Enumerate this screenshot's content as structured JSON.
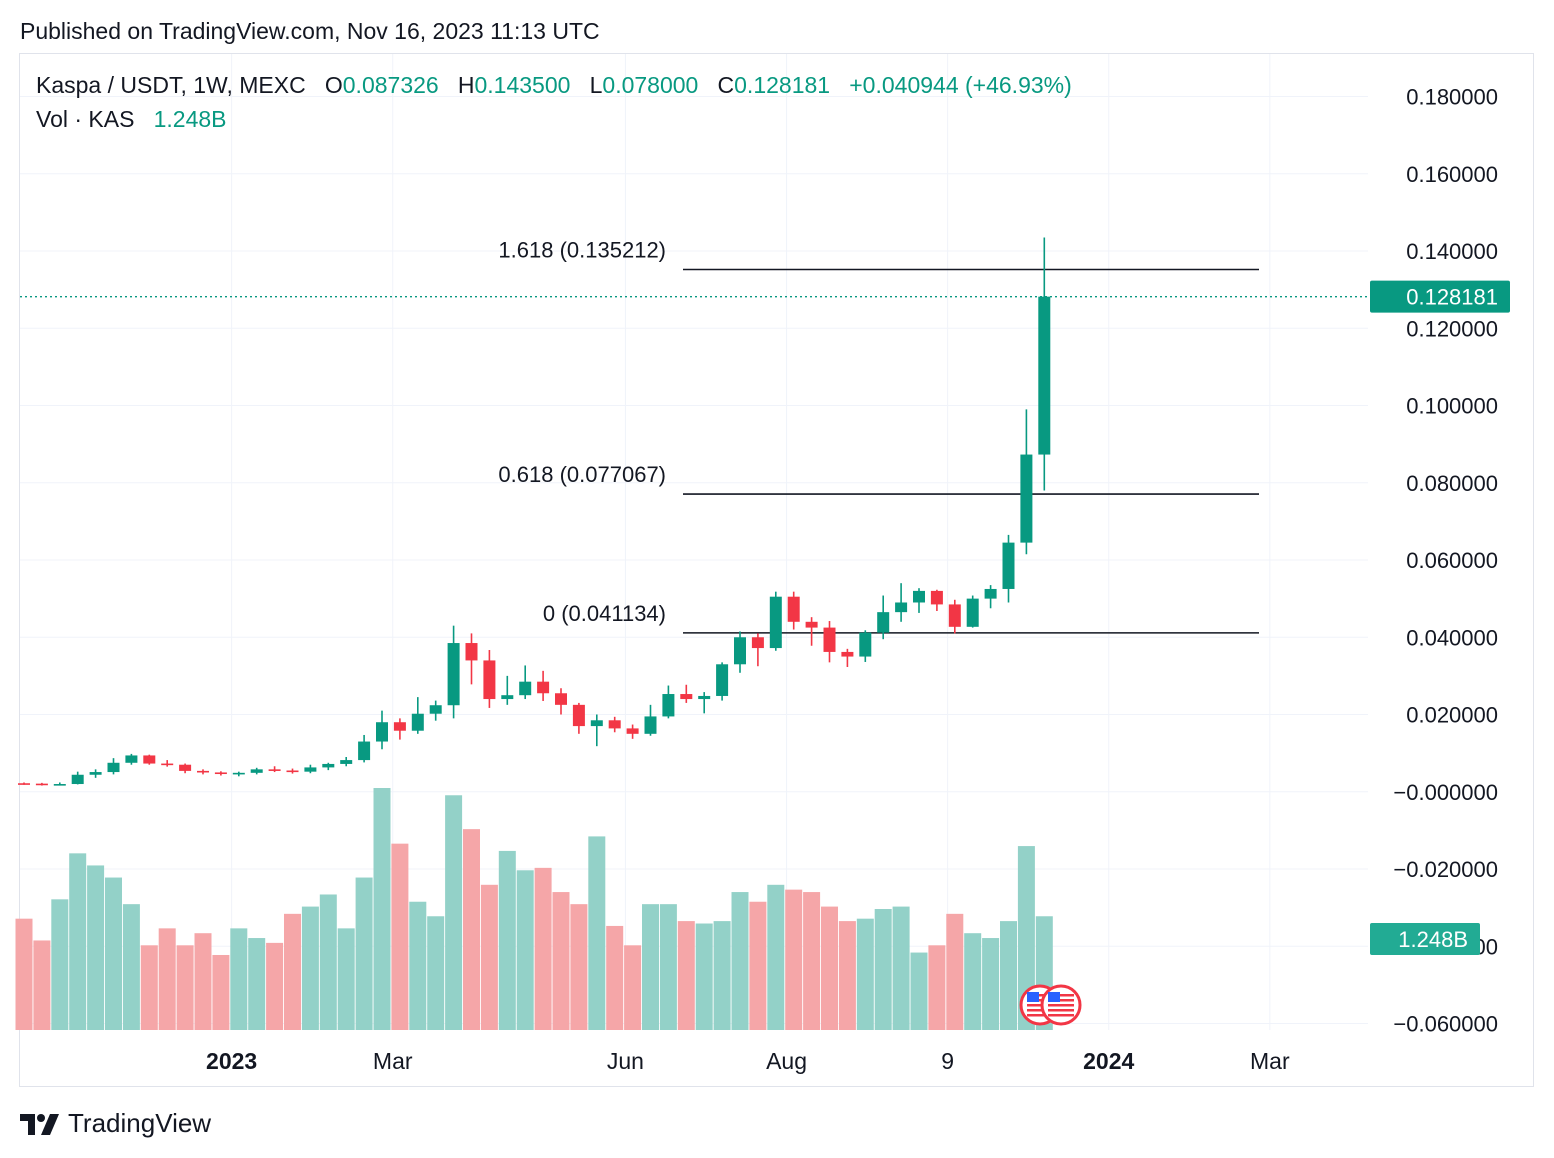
{
  "header": {
    "published": "Published on TradingView.com, Nov 16, 2023 11:13 UTC"
  },
  "legend": {
    "symbol": "Kaspa / USDT, 1W, MEXC",
    "o_key": "O",
    "o_val": "0.087326",
    "h_key": "H",
    "h_val": "0.143500",
    "l_key": "L",
    "l_val": "0.078000",
    "c_key": "C",
    "c_val": "0.128181",
    "change": "+0.040944 (+46.93%)",
    "vol_key": "Vol · KAS",
    "vol_val": "1.248B"
  },
  "brand": {
    "name": "TradingView"
  },
  "colors": {
    "up": "#089981",
    "down": "#f23645",
    "up_vol": "#93d1c8",
    "down_vol": "#f5a6a8",
    "grid": "#f0f3fa",
    "text": "#131722"
  },
  "chart_data": {
    "type": "candlestick",
    "y_axis": {
      "ticks": [
        "0.180000",
        "0.160000",
        "0.140000",
        "0.120000",
        "0.100000",
        "0.080000",
        "0.060000",
        "0.040000",
        "0.020000",
        "−0.000000",
        "−0.020000",
        "−0.040000",
        "−0.060000"
      ],
      "tick_values": [
        0.18,
        0.16,
        0.14,
        0.12,
        0.1,
        0.08,
        0.06,
        0.04,
        0.02,
        0,
        -0.02,
        -0.04,
        -0.06
      ],
      "range": [
        -0.06,
        0.18
      ]
    },
    "x_axis": {
      "labels": [
        {
          "text": "2023",
          "bold": true,
          "week": 11.6
        },
        {
          "text": "Mar",
          "bold": false,
          "week": 20.6
        },
        {
          "text": "Jun",
          "bold": false,
          "week": 33.6
        },
        {
          "text": "Aug",
          "bold": false,
          "week": 42.6
        },
        {
          "text": "9",
          "bold": false,
          "week": 51.6
        },
        {
          "text": "2024",
          "bold": true,
          "week": 60.6
        },
        {
          "text": "Mar",
          "bold": false,
          "week": 69.6
        }
      ]
    },
    "last_price": {
      "value": 0.128181,
      "label": "0.128181"
    },
    "last_volume": {
      "label": "1.248B"
    },
    "fib_levels": [
      {
        "label": "1.618 (0.135212)",
        "value": 0.135212
      },
      {
        "label": "0.618 (0.077067)",
        "value": 0.077067
      },
      {
        "label": "0 (0.041134)",
        "value": 0.041134
      }
    ],
    "candles": [
      {
        "o": 0.0022,
        "h": 0.0024,
        "l": 0.0018,
        "c": 0.0021
      },
      {
        "o": 0.0021,
        "h": 0.0023,
        "l": 0.0016,
        "c": 0.0018
      },
      {
        "o": 0.0018,
        "h": 0.0024,
        "l": 0.0017,
        "c": 0.002
      },
      {
        "o": 0.002,
        "h": 0.0052,
        "l": 0.0019,
        "c": 0.0044
      },
      {
        "o": 0.0044,
        "h": 0.0058,
        "l": 0.0036,
        "c": 0.0051
      },
      {
        "o": 0.0051,
        "h": 0.0087,
        "l": 0.0045,
        "c": 0.0075
      },
      {
        "o": 0.0075,
        "h": 0.0098,
        "l": 0.007,
        "c": 0.0094
      },
      {
        "o": 0.0094,
        "h": 0.0096,
        "l": 0.007,
        "c": 0.0073
      },
      {
        "o": 0.0073,
        "h": 0.0082,
        "l": 0.0065,
        "c": 0.007
      },
      {
        "o": 0.007,
        "h": 0.0073,
        "l": 0.0048,
        "c": 0.0054
      },
      {
        "o": 0.0054,
        "h": 0.0058,
        "l": 0.0045,
        "c": 0.005
      },
      {
        "o": 0.005,
        "h": 0.0053,
        "l": 0.0042,
        "c": 0.0046
      },
      {
        "o": 0.0046,
        "h": 0.0052,
        "l": 0.004,
        "c": 0.0049
      },
      {
        "o": 0.0049,
        "h": 0.0062,
        "l": 0.0045,
        "c": 0.0058
      },
      {
        "o": 0.0058,
        "h": 0.0066,
        "l": 0.0051,
        "c": 0.0055
      },
      {
        "o": 0.0055,
        "h": 0.006,
        "l": 0.0047,
        "c": 0.0052
      },
      {
        "o": 0.0052,
        "h": 0.007,
        "l": 0.0048,
        "c": 0.0063
      },
      {
        "o": 0.0063,
        "h": 0.0075,
        "l": 0.0056,
        "c": 0.0072
      },
      {
        "o": 0.0072,
        "h": 0.009,
        "l": 0.0066,
        "c": 0.0082
      },
      {
        "o": 0.0082,
        "h": 0.0147,
        "l": 0.0076,
        "c": 0.013
      },
      {
        "o": 0.013,
        "h": 0.021,
        "l": 0.011,
        "c": 0.018
      },
      {
        "o": 0.018,
        "h": 0.019,
        "l": 0.0135,
        "c": 0.0158
      },
      {
        "o": 0.0158,
        "h": 0.0245,
        "l": 0.015,
        "c": 0.0202
      },
      {
        "o": 0.0202,
        "h": 0.0236,
        "l": 0.0184,
        "c": 0.0224
      },
      {
        "o": 0.0224,
        "h": 0.043,
        "l": 0.019,
        "c": 0.0385
      },
      {
        "o": 0.0385,
        "h": 0.041,
        "l": 0.0278,
        "c": 0.034
      },
      {
        "o": 0.034,
        "h": 0.0367,
        "l": 0.0217,
        "c": 0.024
      },
      {
        "o": 0.024,
        "h": 0.03,
        "l": 0.0225,
        "c": 0.025
      },
      {
        "o": 0.025,
        "h": 0.0327,
        "l": 0.024,
        "c": 0.0285
      },
      {
        "o": 0.0285,
        "h": 0.0313,
        "l": 0.0235,
        "c": 0.0255
      },
      {
        "o": 0.0255,
        "h": 0.0268,
        "l": 0.02,
        "c": 0.0225
      },
      {
        "o": 0.0225,
        "h": 0.023,
        "l": 0.015,
        "c": 0.017
      },
      {
        "o": 0.017,
        "h": 0.02,
        "l": 0.0118,
        "c": 0.0185
      },
      {
        "o": 0.0185,
        "h": 0.0194,
        "l": 0.0154,
        "c": 0.0164
      },
      {
        "o": 0.0164,
        "h": 0.0174,
        "l": 0.0137,
        "c": 0.015
      },
      {
        "o": 0.015,
        "h": 0.0225,
        "l": 0.0145,
        "c": 0.0195
      },
      {
        "o": 0.0195,
        "h": 0.0275,
        "l": 0.019,
        "c": 0.0253
      },
      {
        "o": 0.0253,
        "h": 0.0277,
        "l": 0.023,
        "c": 0.024
      },
      {
        "o": 0.024,
        "h": 0.0258,
        "l": 0.0203,
        "c": 0.0248
      },
      {
        "o": 0.0248,
        "h": 0.0335,
        "l": 0.0236,
        "c": 0.033
      },
      {
        "o": 0.033,
        "h": 0.0415,
        "l": 0.0308,
        "c": 0.04
      },
      {
        "o": 0.04,
        "h": 0.041,
        "l": 0.0325,
        "c": 0.0372
      },
      {
        "o": 0.0372,
        "h": 0.0518,
        "l": 0.0365,
        "c": 0.0505
      },
      {
        "o": 0.0505,
        "h": 0.0518,
        "l": 0.042,
        "c": 0.044
      },
      {
        "o": 0.044,
        "h": 0.0452,
        "l": 0.0378,
        "c": 0.0425
      },
      {
        "o": 0.0425,
        "h": 0.0442,
        "l": 0.0335,
        "c": 0.0362
      },
      {
        "o": 0.0362,
        "h": 0.037,
        "l": 0.0323,
        "c": 0.035
      },
      {
        "o": 0.035,
        "h": 0.0418,
        "l": 0.0336,
        "c": 0.0412
      },
      {
        "o": 0.0412,
        "h": 0.0508,
        "l": 0.0395,
        "c": 0.0465
      },
      {
        "o": 0.0465,
        "h": 0.054,
        "l": 0.044,
        "c": 0.049
      },
      {
        "o": 0.049,
        "h": 0.0527,
        "l": 0.0463,
        "c": 0.052
      },
      {
        "o": 0.052,
        "h": 0.0523,
        "l": 0.0468,
        "c": 0.0485
      },
      {
        "o": 0.0485,
        "h": 0.0497,
        "l": 0.041,
        "c": 0.0427
      },
      {
        "o": 0.0427,
        "h": 0.0508,
        "l": 0.0425,
        "c": 0.05
      },
      {
        "o": 0.05,
        "h": 0.0535,
        "l": 0.0475,
        "c": 0.0525
      },
      {
        "o": 0.0525,
        "h": 0.0665,
        "l": 0.049,
        "c": 0.0645
      },
      {
        "o": 0.0645,
        "h": 0.099,
        "l": 0.0615,
        "c": 0.0873
      },
      {
        "o": 0.0873,
        "h": 0.1435,
        "l": 0.078,
        "c": 0.128181
      }
    ],
    "volume_rel": [
      0.46,
      0.37,
      0.54,
      0.73,
      0.68,
      0.63,
      0.52,
      0.35,
      0.42,
      0.35,
      0.4,
      0.31,
      0.42,
      0.38,
      0.36,
      0.48,
      0.51,
      0.56,
      0.42,
      0.63,
      1.0,
      0.77,
      0.53,
      0.47,
      0.97,
      0.83,
      0.6,
      0.74,
      0.66,
      0.67,
      0.57,
      0.52,
      0.8,
      0.43,
      0.35,
      0.52,
      0.52,
      0.45,
      0.44,
      0.45,
      0.57,
      0.53,
      0.6,
      0.58,
      0.57,
      0.51,
      0.45,
      0.46,
      0.5,
      0.51,
      0.32,
      0.35,
      0.48,
      0.4,
      0.38,
      0.45,
      0.76,
      0.47
    ]
  }
}
